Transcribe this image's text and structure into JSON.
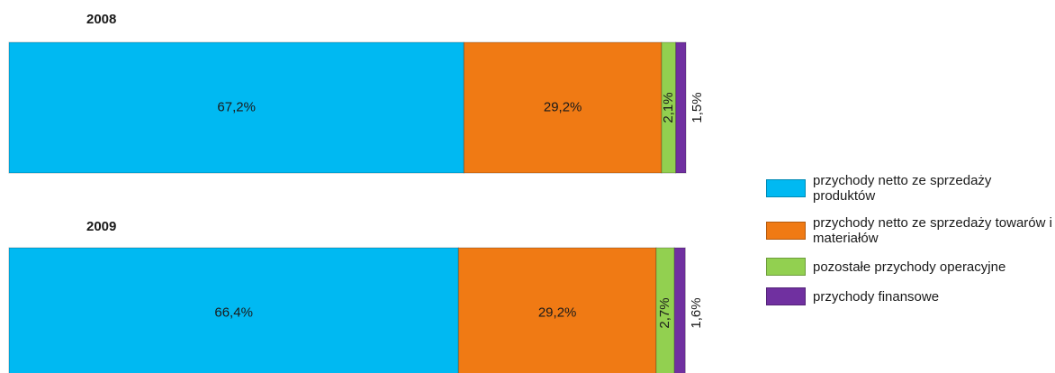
{
  "chart_data": {
    "type": "stacked-bar",
    "orientation": "horizontal",
    "categories": [
      "2008",
      "2009"
    ],
    "xlim": [
      0,
      100
    ],
    "series": [
      {
        "name": "przychody netto ze sprzedaży produktów",
        "color": "#00b9f2",
        "values": [
          67.2,
          66.4
        ],
        "value_labels": [
          "67,2%",
          "66,4%"
        ]
      },
      {
        "name": "przychody netto ze sprzedaży towarów i materiałów",
        "color": "#f07a14",
        "values": [
          29.2,
          29.2
        ],
        "value_labels": [
          "29,2%",
          "29,2%"
        ]
      },
      {
        "name": "pozostałe przychody operacyjne",
        "color": "#92d050",
        "values": [
          2.1,
          2.7
        ],
        "value_labels": [
          "2,1%",
          "2,7%"
        ]
      },
      {
        "name": "przychody finansowe",
        "color": "#7030a0",
        "values": [
          1.5,
          1.6
        ],
        "value_labels": [
          "1,5%",
          "1,6%"
        ]
      }
    ]
  }
}
